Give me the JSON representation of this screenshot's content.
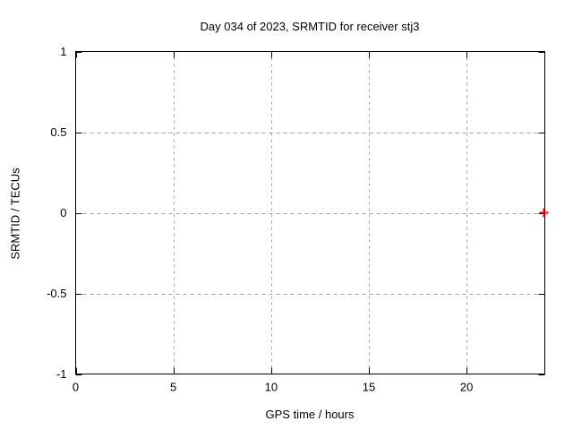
{
  "chart_data": {
    "type": "scatter",
    "title": "Day 034 of 2023, SRMTID for receiver stj3",
    "xlabel": "GPS time / hours",
    "ylabel": "SRMTID / TECUs",
    "xlim": [
      0,
      24
    ],
    "ylim": [
      -1,
      1
    ],
    "xticks": [
      0,
      5,
      10,
      15,
      20
    ],
    "yticks": [
      -1,
      -0.5,
      0,
      0.5,
      1
    ],
    "grid": true,
    "grid_style": "dashed",
    "legend": "none",
    "series": [
      {
        "name": "SRMTID",
        "marker": "plus",
        "color": "#ff0000",
        "points": [
          {
            "x": 23.95,
            "y": 0.0
          }
        ]
      }
    ],
    "colors": {
      "background": "#ffffff",
      "border": "#000000",
      "grid": "#a0a0a0",
      "text": "#000000"
    }
  }
}
